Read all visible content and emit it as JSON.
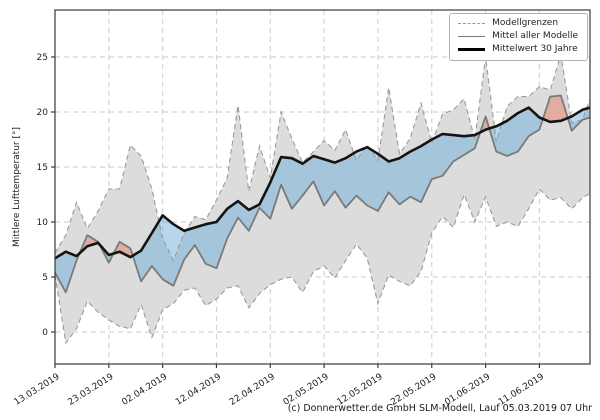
{
  "figure": {
    "caption": "(c) Donnerwetter.de GmbH SLM-Modell, Lauf 05.03.2019 07 Uhr"
  },
  "chart_data": {
    "type": "line",
    "title": "",
    "xlabel": "",
    "ylabel": "Mittlere Lufttemperatur [°]",
    "grid": true,
    "legend_position": "upper right",
    "ylim": [
      -3,
      29.3
    ],
    "xlim_days": [
      0,
      99.4
    ],
    "y_ticks": [
      0,
      5,
      10,
      15,
      20,
      25
    ],
    "x_ticks": [
      {
        "day": 0,
        "label": "13.03.2019"
      },
      {
        "day": 10,
        "label": "23.03.2019"
      },
      {
        "day": 20,
        "label": "02.04.2019"
      },
      {
        "day": 30,
        "label": "12.04.2019"
      },
      {
        "day": 40,
        "label": "22.04.2019"
      },
      {
        "day": 50,
        "label": "02.05.2019"
      },
      {
        "day": 60,
        "label": "12.05.2019"
      },
      {
        "day": 70,
        "label": "22.05.2019"
      },
      {
        "day": 80,
        "label": "01.06.2019"
      },
      {
        "day": 90,
        "label": "11.06.2019"
      }
    ],
    "days": [
      0,
      2,
      4,
      6,
      8,
      10,
      12,
      14,
      16,
      18,
      20,
      22,
      24,
      26,
      28,
      30,
      32,
      34,
      36,
      38,
      40,
      42,
      44,
      46,
      48,
      50,
      52,
      54,
      56,
      58,
      60,
      62,
      64,
      66,
      68,
      70,
      72,
      74,
      76,
      78,
      80,
      82,
      84,
      86,
      88,
      90,
      92,
      94,
      96,
      98,
      99.4
    ],
    "series": [
      {
        "name": "Modellgrenzen (Maximum)",
        "role": "upper_bound",
        "line": "dashed",
        "color": "#9a9a9a",
        "values": [
          7.2,
          8.8,
          11.8,
          9.4,
          11.0,
          13.0,
          13.0,
          17.0,
          16.0,
          13.0,
          8.5,
          6.5,
          9.0,
          10.5,
          10.2,
          12.0,
          14.0,
          20.6,
          12.8,
          16.9,
          14.0,
          20.0,
          17.6,
          15.4,
          16.4,
          17.4,
          16.5,
          18.4,
          15.6,
          17.0,
          15.6,
          22.2,
          16.2,
          17.6,
          20.8,
          17.2,
          19.8,
          20.2,
          21.2,
          17.5,
          25.0,
          17.3,
          20.5,
          21.4,
          21.4,
          22.3,
          22.0,
          25.2,
          19.0,
          19.3,
          21.2
        ]
      },
      {
        "name": "Modellgrenzen (Minimum)",
        "role": "lower_bound",
        "line": "dashed",
        "color": "#9a9a9a",
        "values": [
          5.2,
          -1.0,
          0.3,
          2.8,
          1.8,
          1.1,
          0.5,
          0.3,
          2.5,
          -0.5,
          2.0,
          2.6,
          3.8,
          4.0,
          2.4,
          3.0,
          4.0,
          4.2,
          2.2,
          3.5,
          4.3,
          4.8,
          5.0,
          3.6,
          5.5,
          6.0,
          4.9,
          6.5,
          8.0,
          6.7,
          2.6,
          5.2,
          4.6,
          4.2,
          5.5,
          9.0,
          10.5,
          9.5,
          12.5,
          10.0,
          12.3,
          9.6,
          10.0,
          9.6,
          11.2,
          13.0,
          12.0,
          12.2,
          11.2,
          12.2,
          12.6
        ]
      },
      {
        "name": "Mittel aller Modelle",
        "role": "model_mean",
        "line": "solid",
        "color": "#7a7a7a",
        "values": [
          5.4,
          3.6,
          6.5,
          8.8,
          8.2,
          6.3,
          8.2,
          7.6,
          4.6,
          6.0,
          4.8,
          4.2,
          6.6,
          7.9,
          6.2,
          5.8,
          8.5,
          10.4,
          9.2,
          11.3,
          10.3,
          13.4,
          11.2,
          12.4,
          13.7,
          11.5,
          12.8,
          11.3,
          12.4,
          11.5,
          11.0,
          12.7,
          11.6,
          12.3,
          11.8,
          13.9,
          14.2,
          15.5,
          16.1,
          16.7,
          19.6,
          16.4,
          16.0,
          16.4,
          17.8,
          18.4,
          21.4,
          21.5,
          18.3,
          19.3,
          19.5
        ]
      },
      {
        "name": "Mittelwert 30 Jahre",
        "role": "climate_mean_30y",
        "line": "solid",
        "color": "#141414",
        "values": [
          6.7,
          7.3,
          6.9,
          7.8,
          8.1,
          7.0,
          7.3,
          6.8,
          7.4,
          9.0,
          10.6,
          9.8,
          9.2,
          9.5,
          9.8,
          10.0,
          11.2,
          11.9,
          11.1,
          11.6,
          13.6,
          15.9,
          15.8,
          15.3,
          16.0,
          15.7,
          15.4,
          15.8,
          16.4,
          16.8,
          16.2,
          15.5,
          15.8,
          16.4,
          16.9,
          17.5,
          18.0,
          17.9,
          17.8,
          17.9,
          18.4,
          18.7,
          19.2,
          19.9,
          20.4,
          19.5,
          19.1,
          19.2,
          19.6,
          20.2,
          20.4
        ]
      }
    ],
    "fills": {
      "model_range_fill": "#dcdcdc",
      "below_normal_fill": "rgba(110,175,215,0.5)",
      "above_normal_fill": "rgba(231,126,102,0.5)"
    },
    "legend": [
      {
        "label": "Modellgrenzen",
        "style": "dashed-gray"
      },
      {
        "label": "Mittel aller Modelle",
        "style": "solid-gray"
      },
      {
        "label": "Mittelwert 30 Jahre",
        "style": "solid-black"
      }
    ],
    "colors": {
      "grid": "#d4d4d4",
      "frame": "#3a3a3a",
      "tick_text": "#1f1f1f"
    }
  }
}
